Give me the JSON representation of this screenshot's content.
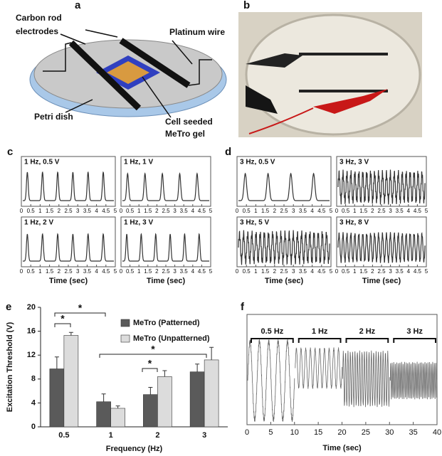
{
  "panels": {
    "a": {
      "letter": "a",
      "labels": [
        "Carbon rod",
        "electrodes",
        "Platinum wire",
        "Petri dish",
        "Cell seeded",
        "MeTro gel"
      ]
    },
    "b": {
      "letter": "b"
    },
    "c": {
      "letter": "c",
      "plots": [
        "1 Hz, 0.5 V",
        "1 Hz, 1 V",
        "1 Hz, 2 V",
        "1 Hz, 3 V"
      ],
      "xlim": [
        0,
        5
      ],
      "xticks": [
        0,
        0.5,
        1,
        1.5,
        2,
        2.5,
        3,
        3.5,
        4,
        4.5,
        5
      ],
      "xlabel": "Time (sec)"
    },
    "d": {
      "letter": "d",
      "plots": [
        "3 Hz, 0.5 V",
        "3 Hz, 3 V",
        "3 Hz, 5 V",
        "3 Hz, 8 V"
      ],
      "xlim": [
        0,
        5
      ],
      "xticks": [
        0,
        0.5,
        1,
        1.5,
        2,
        2.5,
        3,
        3.5,
        4,
        4.5,
        5
      ],
      "xlabel": "Time (sec)"
    },
    "e": {
      "letter": "e",
      "significance_labels": [
        "*",
        "*",
        "*",
        "*"
      ]
    },
    "f": {
      "letter": "f",
      "labels": [
        "0.5 Hz",
        "1 Hz",
        "2 Hz",
        "3 Hz"
      ],
      "xlim": [
        0,
        40
      ],
      "xticks": [
        0,
        5,
        10,
        15,
        20,
        25,
        30,
        35,
        40
      ],
      "xlabel": "Time (sec)"
    }
  },
  "chart_data": {
    "type": "bar",
    "categories": [
      "0.5",
      "1",
      "2",
      "3"
    ],
    "xlabel": "Frequency (Hz)",
    "ylabel": "Excitation Threshold (V)",
    "ylim": [
      0,
      20
    ],
    "yticks": [
      0,
      4,
      8,
      12,
      16,
      20
    ],
    "series": [
      {
        "name": "MeTro (Patterned)",
        "color": "#5a5a5a",
        "values": [
          9.7,
          4.2,
          5.4,
          9.2
        ],
        "errors": [
          2,
          1.3,
          1.2,
          1.3
        ]
      },
      {
        "name": "MeTro (Unpatterned)",
        "color": "#dcdcdc",
        "values": [
          15.3,
          3.1,
          8.4,
          11.2
        ],
        "errors": [
          0.5,
          0.4,
          1,
          2.1
        ]
      }
    ]
  }
}
